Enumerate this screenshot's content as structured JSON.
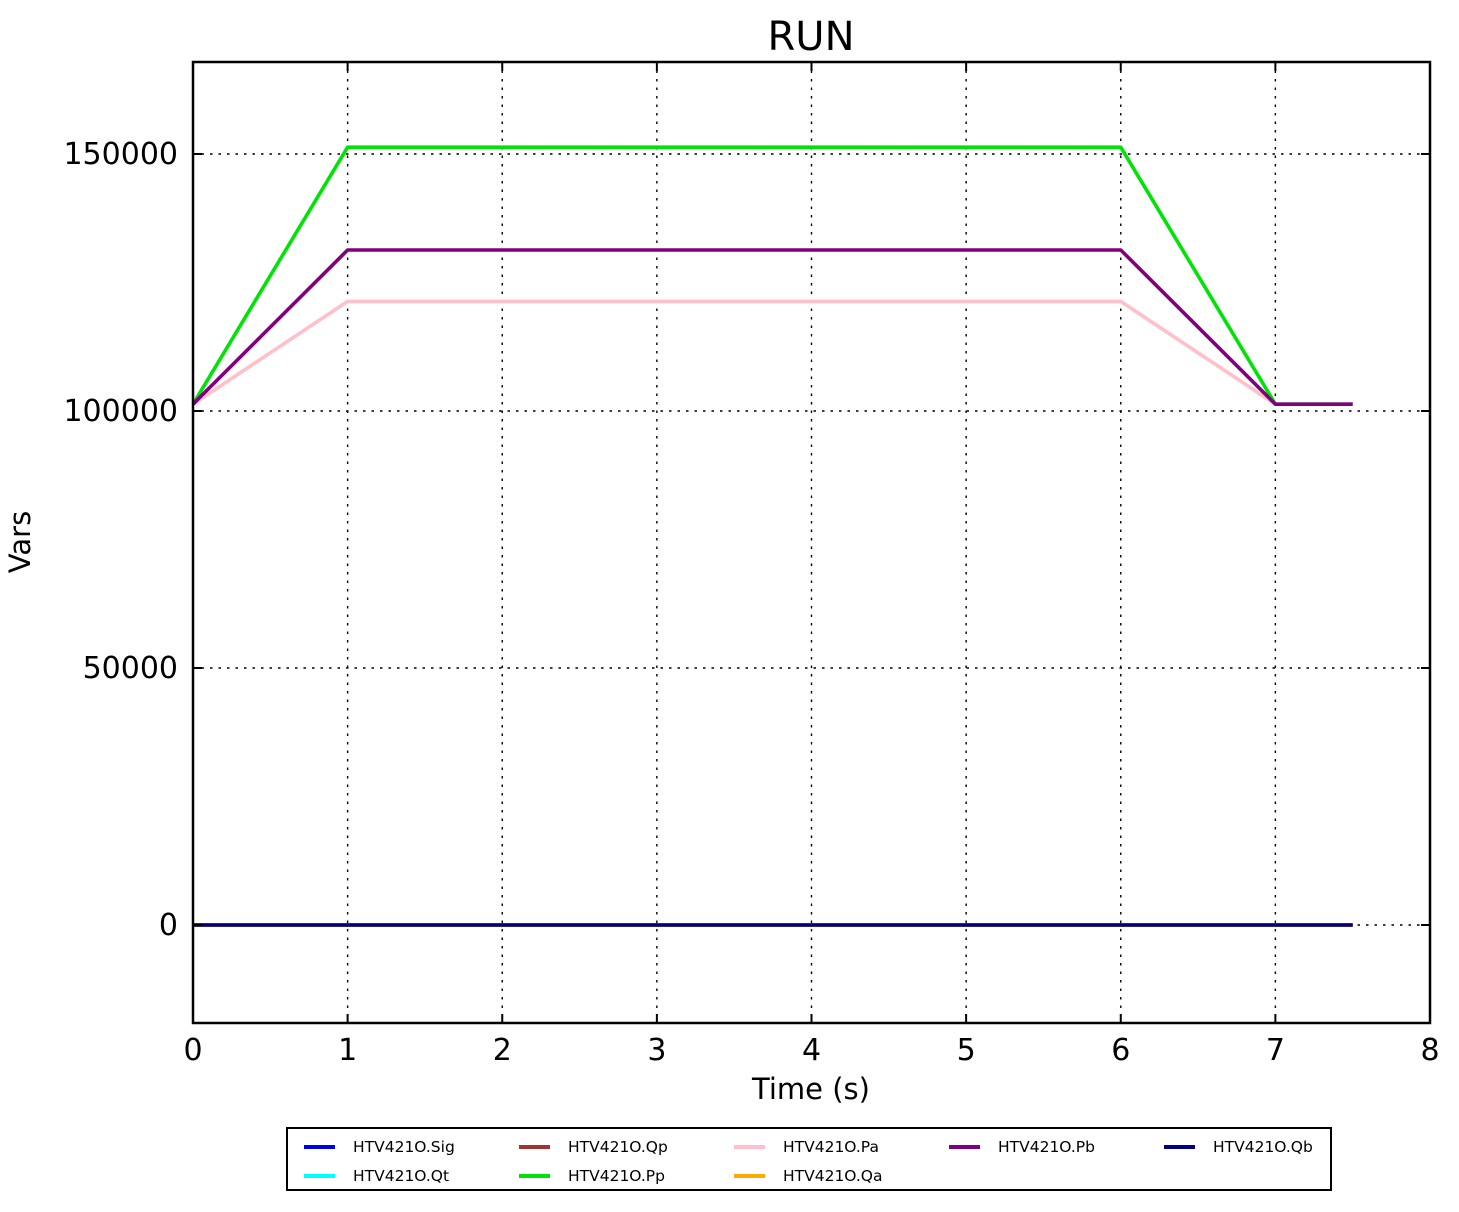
{
  "figure": {
    "background": "#ffffff",
    "frame_color": "#000000",
    "grid_style": "dotted"
  },
  "chart_data": {
    "type": "line",
    "title": "RUN",
    "xlabel": "Time (s)",
    "ylabel": "Vars",
    "xlim": [
      0,
      8
    ],
    "ylim": [
      -19000,
      168000
    ],
    "xticks": [
      0,
      1,
      2,
      3,
      4,
      5,
      6,
      7,
      8
    ],
    "yticks": [
      0,
      50000,
      100000,
      150000
    ],
    "grid": true,
    "legend_position": "bottom",
    "legend_ncol": 5,
    "series": [
      {
        "name": "HTV421O.Sig",
        "color": "#0000e6",
        "points": [
          [
            0,
            0
          ],
          [
            7.5,
            0
          ]
        ]
      },
      {
        "name": "HTV421O.Qt",
        "color": "#00ffff",
        "points": [
          [
            0,
            0
          ],
          [
            7.5,
            0
          ]
        ]
      },
      {
        "name": "HTV421O.Qp",
        "color": "#a33232",
        "points": [
          [
            0,
            0
          ],
          [
            7.5,
            0
          ]
        ]
      },
      {
        "name": "HTV421O.Pp",
        "color": "#00e405",
        "points": [
          [
            0,
            101325
          ],
          [
            1,
            151325
          ],
          [
            6,
            151325
          ],
          [
            7,
            101325
          ],
          [
            7.5,
            101325
          ]
        ]
      },
      {
        "name": "HTV421O.Pa",
        "color": "#ffc0cb",
        "points": [
          [
            0,
            101325
          ],
          [
            1,
            121325
          ],
          [
            6,
            121325
          ],
          [
            7,
            101325
          ],
          [
            7.5,
            101325
          ]
        ]
      },
      {
        "name": "HTV421O.Qa",
        "color": "#ffa903",
        "points": [
          [
            0,
            0
          ],
          [
            7.5,
            0
          ]
        ]
      },
      {
        "name": "HTV421O.Pb",
        "color": "#800080",
        "points": [
          [
            0,
            101325
          ],
          [
            1,
            131325
          ],
          [
            6,
            131325
          ],
          [
            7,
            101325
          ],
          [
            7.5,
            101325
          ]
        ]
      },
      {
        "name": "HTV421O.Qb",
        "color": "#000080",
        "points": [
          [
            0,
            0
          ],
          [
            7.5,
            0
          ]
        ]
      }
    ]
  }
}
